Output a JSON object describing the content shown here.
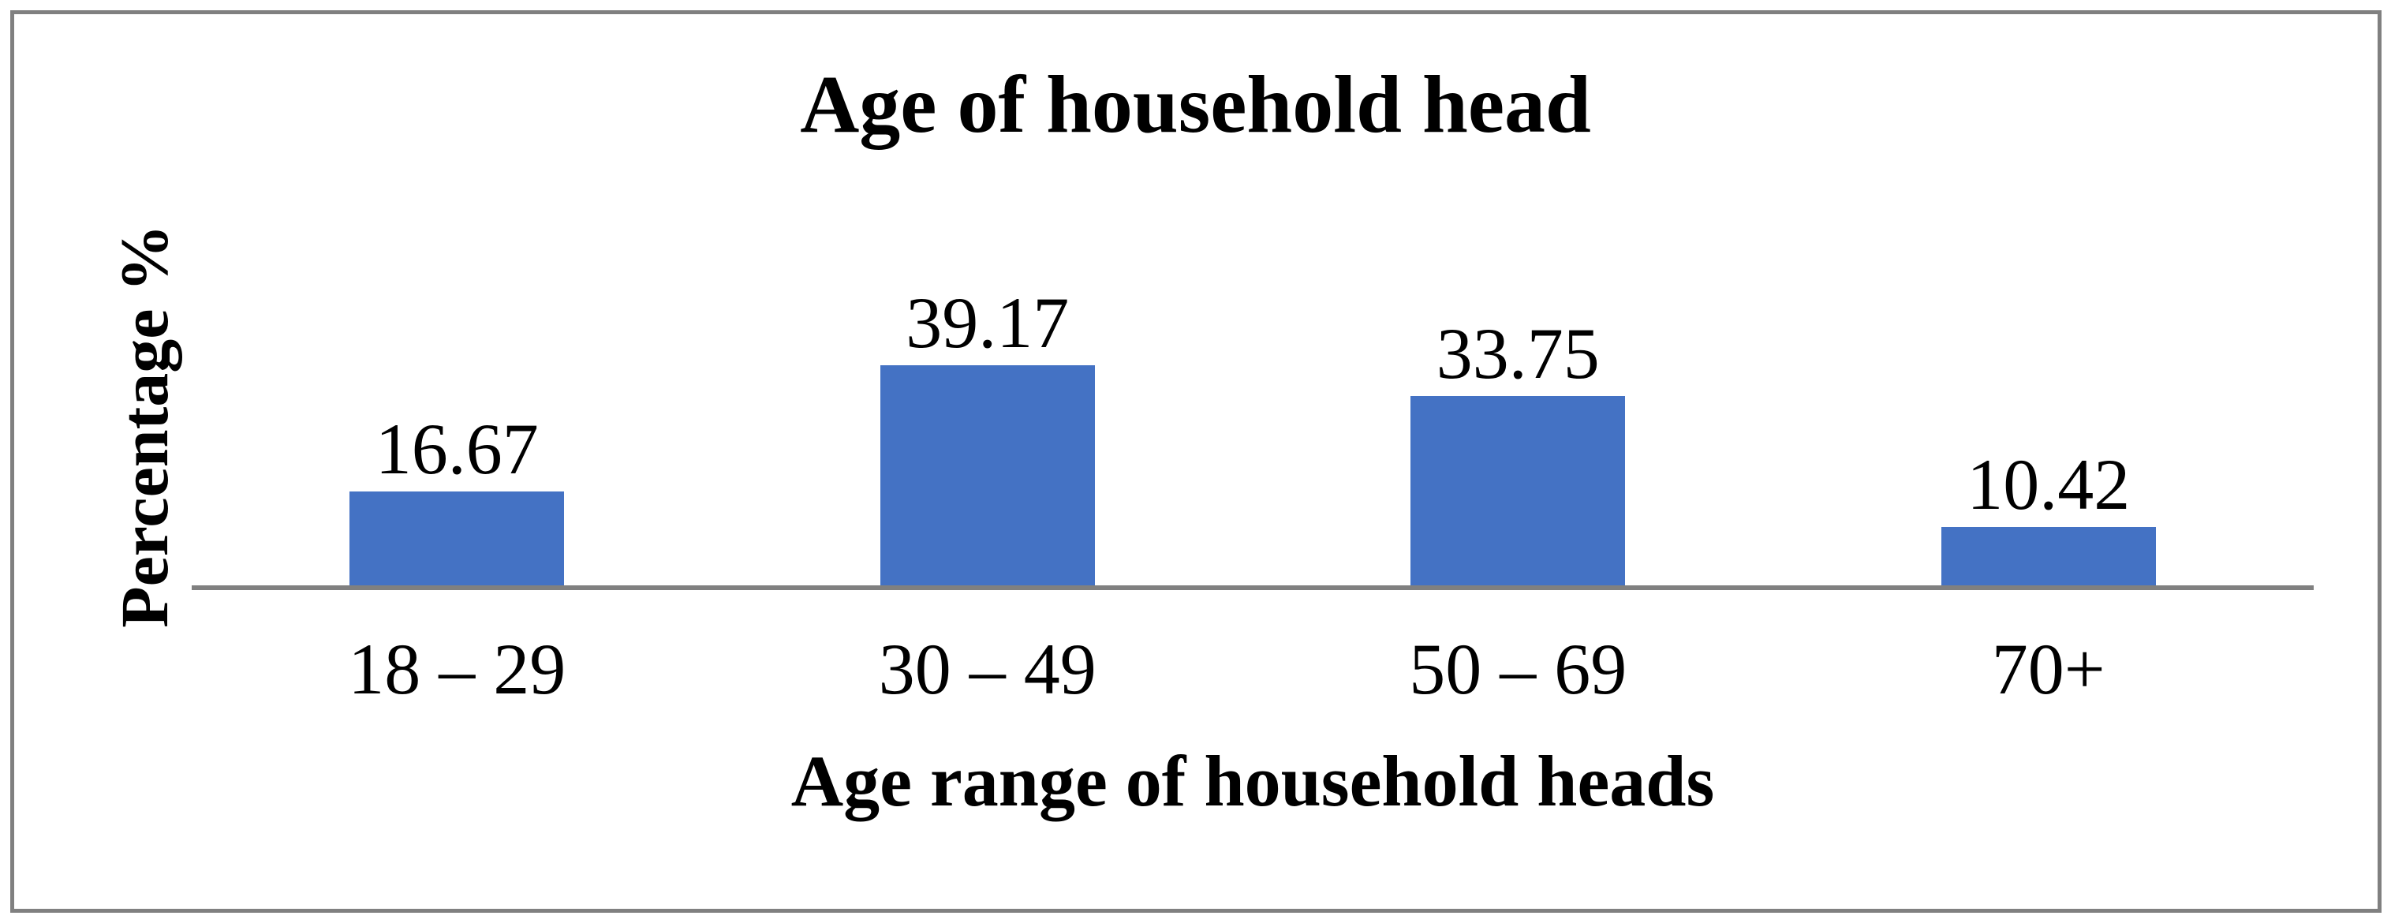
{
  "figure": {
    "background_color": "#ffffff",
    "frame_border_color": "#808080",
    "text_color": "#000000"
  },
  "chart_data": {
    "type": "bar",
    "title": "Age of household head",
    "xlabel": "Age range of household heads",
    "ylabel": "Percentage %",
    "categories": [
      "18 – 29",
      "30 – 49",
      "50 – 69",
      "70+"
    ],
    "values": [
      16.67,
      39.17,
      33.75,
      10.42
    ],
    "data_labels": [
      "16.67",
      "39.17",
      "33.75",
      "10.42"
    ],
    "bar_color": "#4472C4",
    "axis_line_color": "#808080",
    "grid": false,
    "legend": "none",
    "y_axis_ticks_visible": false
  }
}
